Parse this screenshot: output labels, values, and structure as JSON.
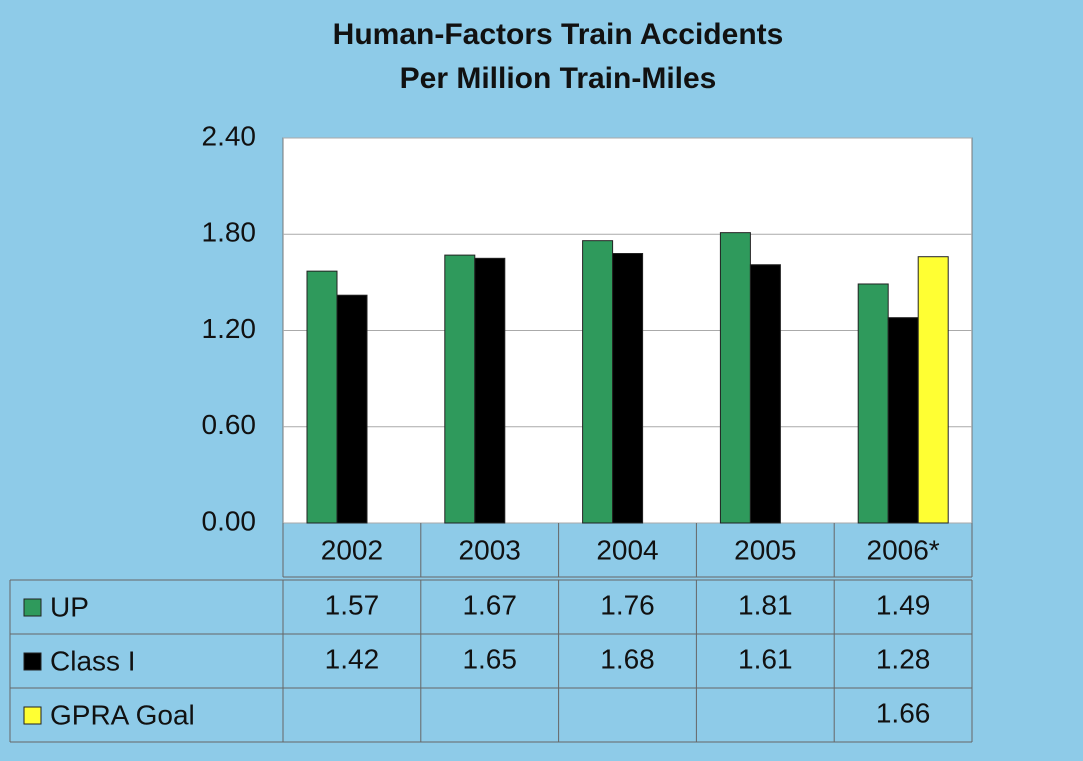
{
  "chart_data": {
    "type": "bar",
    "title": [
      "Human-Factors Train Accidents",
      "Per Million Train-Miles"
    ],
    "categories": [
      "2002",
      "2003",
      "2004",
      "2005",
      "2006*"
    ],
    "series": [
      {
        "name": "UP",
        "color": "#2f9a5c",
        "values": [
          1.57,
          1.67,
          1.76,
          1.81,
          1.49
        ]
      },
      {
        "name": "Class I",
        "color": "#000000",
        "values": [
          1.42,
          1.65,
          1.68,
          1.61,
          1.28
        ]
      },
      {
        "name": "GPRA Goal",
        "color": "#ffff33",
        "values": [
          null,
          null,
          null,
          null,
          1.66
        ]
      }
    ],
    "ylim": [
      0,
      2.4
    ],
    "yticks": [
      {
        "value": 0,
        "label": "0.00"
      },
      {
        "value": 0.6,
        "label": "0.60"
      },
      {
        "value": 1.2,
        "label": "1.20"
      },
      {
        "value": 1.8,
        "label": "1.80"
      },
      {
        "value": 2.4,
        "label": "2.40"
      }
    ],
    "grid": true
  }
}
